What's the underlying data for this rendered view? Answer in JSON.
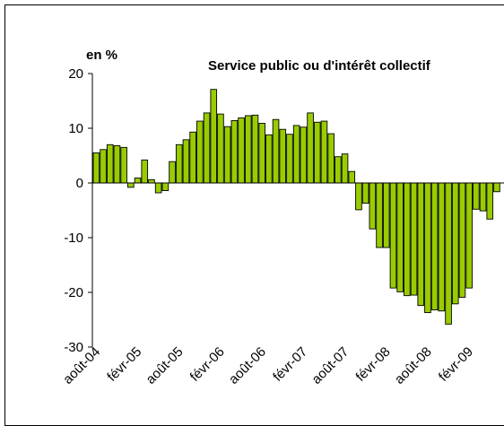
{
  "chart_data": {
    "type": "bar",
    "title": "Service public ou d'intérêt collectif",
    "ylabel": "en %",
    "xlabel": "",
    "ylim": [
      -30,
      20
    ],
    "yticks": [
      20,
      10,
      0,
      -10,
      -20,
      -30
    ],
    "xtick_labels": [
      "août-04",
      "févr-05",
      "août-05",
      "févr-06",
      "août-06",
      "févr-07",
      "août-07",
      "févr-08",
      "août-08",
      "févr-09"
    ],
    "bar_color": "#99cc00",
    "values": [
      5.5,
      6.1,
      7.0,
      6.8,
      6.5,
      -0.8,
      0.9,
      4.2,
      0.6,
      -1.8,
      -1.4,
      3.9,
      7.0,
      7.9,
      9.3,
      11.3,
      12.8,
      17.1,
      12.6,
      10.3,
      11.4,
      11.9,
      12.3,
      12.4,
      10.9,
      8.8,
      11.6,
      9.8,
      8.9,
      10.5,
      10.2,
      12.8,
      11.1,
      11.3,
      9.0,
      4.8,
      5.3,
      2.1,
      -4.9,
      -3.7,
      -8.4,
      -11.8,
      -11.8,
      -19.2,
      -19.9,
      -20.6,
      -20.5,
      -22.4,
      -23.7,
      -23.2,
      -23.4,
      -25.8,
      -22.1,
      -20.9,
      -19.2,
      -4.8,
      -5.1,
      -6.6,
      -1.6
    ]
  }
}
